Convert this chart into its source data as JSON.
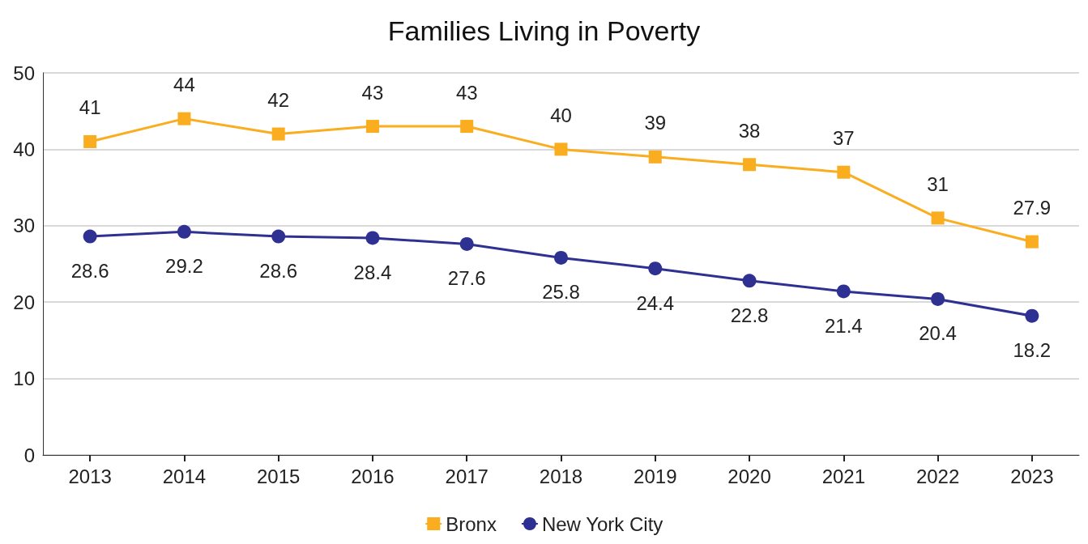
{
  "chart_data": {
    "type": "line",
    "title": "Families Living in Poverty",
    "categories": [
      "2013",
      "2014",
      "2015",
      "2016",
      "2017",
      "2018",
      "2019",
      "2020",
      "2021",
      "2022",
      "2023"
    ],
    "series": [
      {
        "name": "Bronx",
        "color": "#f9ad1f",
        "marker": "square",
        "values": [
          41,
          44,
          42,
          43,
          43,
          40,
          39,
          38,
          37,
          31,
          27.9
        ]
      },
      {
        "name": "New York City",
        "color": "#2e3192",
        "marker": "circle",
        "values": [
          28.6,
          29.2,
          28.6,
          28.4,
          27.6,
          25.8,
          24.4,
          22.8,
          21.4,
          20.4,
          18.2
        ]
      }
    ],
    "ylim": [
      0,
      50
    ],
    "yticks": [
      0,
      10,
      20,
      30,
      40,
      50
    ],
    "grid": "y",
    "legend": "bottom",
    "data_labels": true
  }
}
